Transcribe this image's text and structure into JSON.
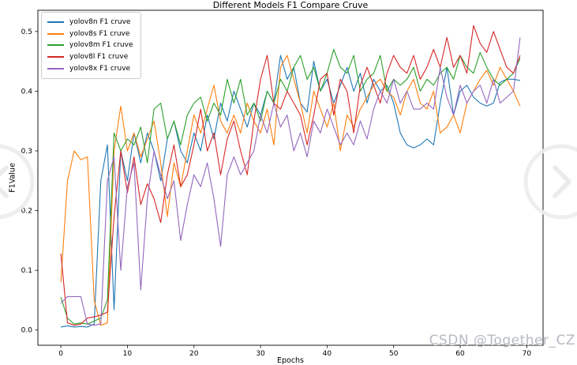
{
  "watermark": "CSDN @Together_CZ",
  "nav": {
    "prev_icon": "chevron-left",
    "next_icon": "chevron-right"
  },
  "chart_data": {
    "type": "line",
    "title": "Different Models F1 Compare Cruve",
    "xlabel": "Epochs",
    "ylabel": "F1Value",
    "grid": false,
    "legend_position": "upper left",
    "xlim": [
      -3.45,
      72.45
    ],
    "ylim": [
      -0.0255,
      0.5355
    ],
    "x_ticks": [
      0,
      10,
      20,
      30,
      40,
      50,
      60,
      70
    ],
    "y_ticks": [
      "0.0",
      "0.1",
      "0.2",
      "0.3",
      "0.4",
      "0.5"
    ],
    "x": [
      0,
      1,
      2,
      3,
      4,
      5,
      6,
      7,
      8,
      9,
      10,
      11,
      12,
      13,
      14,
      15,
      16,
      17,
      18,
      19,
      20,
      21,
      22,
      23,
      24,
      25,
      26,
      27,
      28,
      29,
      30,
      31,
      32,
      33,
      34,
      35,
      36,
      37,
      38,
      39,
      40,
      41,
      42,
      43,
      44,
      45,
      46,
      47,
      48,
      49,
      50,
      51,
      52,
      53,
      54,
      55,
      56,
      57,
      58,
      59,
      60,
      61,
      62,
      63,
      64,
      65,
      66,
      67,
      68,
      69
    ],
    "series": [
      {
        "name": "yolov8n F1 cruve",
        "color": "#1f77b4",
        "values": [
          0.005,
          0.007,
          0.005,
          0.006,
          0.005,
          0.01,
          0.25,
          0.31,
          0.034,
          0.3,
          0.25,
          0.33,
          0.28,
          0.33,
          0.3,
          0.25,
          0.32,
          0.35,
          0.3,
          0.28,
          0.33,
          0.3,
          0.36,
          0.32,
          0.38,
          0.35,
          0.4,
          0.37,
          0.34,
          0.38,
          0.36,
          0.4,
          0.38,
          0.46,
          0.42,
          0.44,
          0.38,
          0.365,
          0.45,
          0.4,
          0.42,
          0.38,
          0.41,
          0.44,
          0.4,
          0.43,
          0.38,
          0.42,
          0.4,
          0.41,
          0.38,
          0.33,
          0.31,
          0.305,
          0.31,
          0.32,
          0.31,
          0.38,
          0.44,
          0.36,
          0.4,
          0.41,
          0.39,
          0.38,
          0.375,
          0.38,
          0.415,
          0.42,
          0.42,
          0.418
        ]
      },
      {
        "name": "yolov8s F1 cruve",
        "color": "#ff7f0e",
        "values": [
          0.08,
          0.25,
          0.3,
          0.285,
          0.29,
          0.05,
          0.008,
          0.012,
          0.3,
          0.375,
          0.3,
          0.33,
          0.29,
          0.32,
          0.35,
          0.28,
          0.19,
          0.28,
          0.24,
          0.3,
          0.36,
          0.33,
          0.37,
          0.41,
          0.35,
          0.33,
          0.36,
          0.33,
          0.38,
          0.35,
          0.33,
          0.37,
          0.31,
          0.44,
          0.46,
          0.42,
          0.38,
          0.33,
          0.4,
          0.37,
          0.34,
          0.38,
          0.3,
          0.36,
          0.34,
          0.37,
          0.39,
          0.41,
          0.42,
          0.4,
          0.39,
          0.36,
          0.4,
          0.42,
          0.38,
          0.37,
          0.4,
          0.33,
          0.34,
          0.36,
          0.33,
          0.38,
          0.4,
          0.42,
          0.435,
          0.41,
          0.44,
          0.42,
          0.4,
          0.375
        ]
      },
      {
        "name": "yolov8m F1 cruve",
        "color": "#2ca02c",
        "values": [
          0.055,
          0.02,
          0.01,
          0.012,
          0.01,
          0.015,
          0.02,
          0.05,
          0.33,
          0.3,
          0.32,
          0.31,
          0.34,
          0.28,
          0.37,
          0.38,
          0.32,
          0.35,
          0.31,
          0.36,
          0.38,
          0.39,
          0.35,
          0.38,
          0.36,
          0.42,
          0.38,
          0.42,
          0.36,
          0.38,
          0.35,
          0.4,
          0.38,
          0.42,
          0.4,
          0.44,
          0.46,
          0.42,
          0.44,
          0.4,
          0.43,
          0.47,
          0.44,
          0.43,
          0.46,
          0.4,
          0.42,
          0.43,
          0.46,
          0.4,
          0.42,
          0.41,
          0.42,
          0.44,
          0.4,
          0.42,
          0.41,
          0.43,
          0.44,
          0.42,
          0.46,
          0.44,
          0.43,
          0.465,
          0.44,
          0.42,
          0.41,
          0.42,
          0.43,
          0.455
        ]
      },
      {
        "name": "yolov8l F1 cruve",
        "color": "#d62728",
        "values": [
          0.128,
          0.012,
          0.008,
          0.01,
          0.02,
          0.022,
          0.025,
          0.03,
          0.19,
          0.3,
          0.23,
          0.29,
          0.21,
          0.245,
          0.22,
          0.18,
          0.26,
          0.31,
          0.24,
          0.26,
          0.31,
          0.37,
          0.3,
          0.33,
          0.26,
          0.32,
          0.35,
          0.3,
          0.26,
          0.35,
          0.42,
          0.46,
          0.38,
          0.37,
          0.4,
          0.38,
          0.36,
          0.31,
          0.36,
          0.42,
          0.43,
          0.36,
          0.42,
          0.4,
          0.33,
          0.41,
          0.44,
          0.41,
          0.38,
          0.43,
          0.46,
          0.44,
          0.43,
          0.46,
          0.42,
          0.44,
          0.47,
          0.44,
          0.49,
          0.44,
          0.46,
          0.43,
          0.51,
          0.48,
          0.465,
          0.5,
          0.47,
          0.44,
          0.43,
          0.46
        ]
      },
      {
        "name": "yolov8x F1 cruve",
        "color": "#9467bd",
        "values": [
          0.045,
          0.056,
          0.056,
          0.056,
          0.01,
          0.008,
          0.01,
          0.25,
          0.29,
          0.1,
          0.24,
          0.28,
          0.067,
          0.22,
          0.3,
          0.26,
          0.22,
          0.25,
          0.15,
          0.21,
          0.26,
          0.24,
          0.28,
          0.22,
          0.14,
          0.26,
          0.29,
          0.26,
          0.28,
          0.3,
          0.36,
          0.33,
          0.38,
          0.34,
          0.36,
          0.3,
          0.33,
          0.29,
          0.35,
          0.33,
          0.37,
          0.34,
          0.31,
          0.33,
          0.31,
          0.35,
          0.32,
          0.37,
          0.4,
          0.38,
          0.42,
          0.38,
          0.4,
          0.37,
          0.37,
          0.38,
          0.37,
          0.44,
          0.39,
          0.36,
          0.41,
          0.38,
          0.4,
          0.41,
          0.38,
          0.42,
          0.38,
          0.39,
          0.4,
          0.49
        ]
      }
    ]
  }
}
